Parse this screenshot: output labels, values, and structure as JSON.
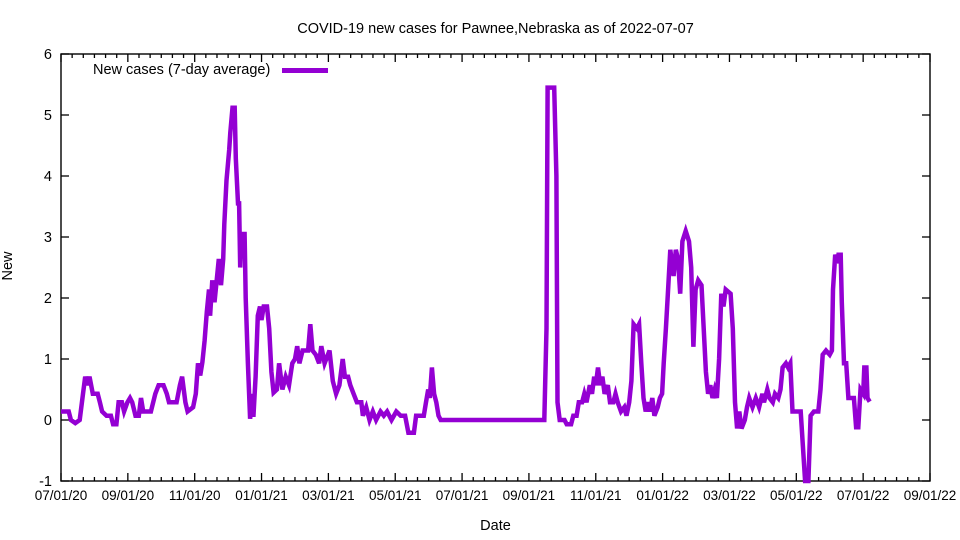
{
  "title": "COVID-19 new cases for Pawnee,Nebraska as of 2022-07-07",
  "legend": {
    "label": "New cases (7-day average)",
    "position": "top-left-inside"
  },
  "colors": {
    "series": "#9400d3",
    "axis": "#000000",
    "background": "#ffffff"
  },
  "axes": {
    "x": {
      "label": "Date",
      "tick_labels": [
        "07/01/20",
        "09/01/20",
        "11/01/20",
        "01/01/21",
        "03/01/21",
        "05/01/21",
        "07/01/21",
        "09/01/21",
        "11/01/21",
        "01/01/22",
        "03/01/22",
        "05/01/22",
        "07/01/22",
        "09/01/22"
      ],
      "minor_ticks_per_interval": 6
    },
    "y": {
      "label": "New",
      "tick_labels": [
        "-1",
        "0",
        "1",
        "2",
        "3",
        "4",
        "5",
        "6"
      ],
      "range": [
        -1,
        6
      ]
    }
  },
  "chart_data": {
    "type": "line",
    "title": "COVID-19 new cases for Pawnee,Nebraska as of 2022-07-07",
    "xlabel": "Date",
    "ylabel": "New",
    "x_range": [
      "07/01/20",
      "09/01/22"
    ],
    "ylim": [
      -1,
      6
    ],
    "grid": false,
    "legend_position": "top-left-inside",
    "series": [
      {
        "name": "New cases (7-day average)",
        "color": "#9400d3",
        "points": [
          [
            "07/01/20",
            0.14
          ],
          [
            "07/08/20",
            0.14
          ],
          [
            "07/10/20",
            0.0
          ],
          [
            "07/14/20",
            -0.05
          ],
          [
            "07/18/20",
            0.0
          ],
          [
            "07/21/20",
            0.43
          ],
          [
            "07/23/20",
            0.71
          ],
          [
            "07/25/20",
            0.57
          ],
          [
            "07/27/20",
            0.71
          ],
          [
            "07/30/20",
            0.43
          ],
          [
            "08/04/20",
            0.43
          ],
          [
            "08/06/20",
            0.29
          ],
          [
            "08/08/20",
            0.14
          ],
          [
            "08/12/20",
            0.07
          ],
          [
            "08/16/20",
            0.07
          ],
          [
            "08/18/20",
            -0.07
          ],
          [
            "08/21/20",
            -0.07
          ],
          [
            "08/23/20",
            0.29
          ],
          [
            "08/26/20",
            0.29
          ],
          [
            "08/28/20",
            0.14
          ],
          [
            "08/31/20",
            0.29
          ],
          [
            "09/03/20",
            0.36
          ],
          [
            "09/05/20",
            0.29
          ],
          [
            "09/08/20",
            0.07
          ],
          [
            "09/11/20",
            0.07
          ],
          [
            "09/13/20",
            0.36
          ],
          [
            "09/15/20",
            0.14
          ],
          [
            "09/22/20",
            0.14
          ],
          [
            "09/26/20",
            0.43
          ],
          [
            "09/29/20",
            0.57
          ],
          [
            "10/03/20",
            0.57
          ],
          [
            "10/06/20",
            0.43
          ],
          [
            "10/08/20",
            0.29
          ],
          [
            "10/15/20",
            0.29
          ],
          [
            "10/18/20",
            0.57
          ],
          [
            "10/20/20",
            0.71
          ],
          [
            "10/23/20",
            0.29
          ],
          [
            "10/25/20",
            0.14
          ],
          [
            "10/30/20",
            0.21
          ],
          [
            "11/02/20",
            0.43
          ],
          [
            "11/04/20",
            0.93
          ],
          [
            "11/06/20",
            0.73
          ],
          [
            "11/08/20",
            0.95
          ],
          [
            "11/10/20",
            1.3
          ],
          [
            "11/12/20",
            1.77
          ],
          [
            "11/14/20",
            2.14
          ],
          [
            "11/15/20",
            1.71
          ],
          [
            "11/17/20",
            2.29
          ],
          [
            "11/19/20",
            1.93
          ],
          [
            "11/21/20",
            2.29
          ],
          [
            "11/23/20",
            2.64
          ],
          [
            "11/25/20",
            2.21
          ],
          [
            "11/27/20",
            2.64
          ],
          [
            "11/28/20",
            3.21
          ],
          [
            "11/30/20",
            3.93
          ],
          [
            "12/02/20",
            4.43
          ],
          [
            "12/03/20",
            4.71
          ],
          [
            "12/05/20",
            5.12
          ],
          [
            "12/07/20",
            5.12
          ],
          [
            "12/08/20",
            4.29
          ],
          [
            "12/10/20",
            3.55
          ],
          [
            "12/11/20",
            3.55
          ],
          [
            "12/12/20",
            2.5
          ],
          [
            "12/13/20",
            3.05
          ],
          [
            "12/16/20",
            3.05
          ],
          [
            "12/17/20",
            2.0
          ],
          [
            "12/19/20",
            0.93
          ],
          [
            "12/21/20",
            0.02
          ],
          [
            "12/23/20",
            0.43
          ],
          [
            "12/24/20",
            0.05
          ],
          [
            "12/26/20",
            0.71
          ],
          [
            "12/28/20",
            1.71
          ],
          [
            "12/30/20",
            1.86
          ],
          [
            "01/01/21",
            1.64
          ],
          [
            "01/03/21",
            1.86
          ],
          [
            "01/06/21",
            1.86
          ],
          [
            "01/08/21",
            1.5
          ],
          [
            "01/10/21",
            0.79
          ],
          [
            "01/12/21",
            0.45
          ],
          [
            "01/15/21",
            0.5
          ],
          [
            "01/17/21",
            0.93
          ],
          [
            "01/20/21",
            0.5
          ],
          [
            "01/23/21",
            0.71
          ],
          [
            "01/26/21",
            0.57
          ],
          [
            "01/29/21",
            0.93
          ],
          [
            "02/01/21",
            1.0
          ],
          [
            "02/03/21",
            1.21
          ],
          [
            "02/05/21",
            0.93
          ],
          [
            "02/08/21",
            1.14
          ],
          [
            "02/13/21",
            1.14
          ],
          [
            "02/15/21",
            1.57
          ],
          [
            "02/17/21",
            1.14
          ],
          [
            "02/20/21",
            1.07
          ],
          [
            "02/23/21",
            0.93
          ],
          [
            "02/25/21",
            1.21
          ],
          [
            "02/28/21",
            0.93
          ],
          [
            "03/02/21",
            1.14
          ],
          [
            "03/05/21",
            0.64
          ],
          [
            "03/08/21",
            0.43
          ],
          [
            "03/11/21",
            0.57
          ],
          [
            "03/14/21",
            1.0
          ],
          [
            "03/16/21",
            0.71
          ],
          [
            "03/19/21",
            0.71
          ],
          [
            "03/21/21",
            0.57
          ],
          [
            "03/24/21",
            0.43
          ],
          [
            "03/27/21",
            0.29
          ],
          [
            "03/31/21",
            0.29
          ],
          [
            "04/02/21",
            0.07
          ],
          [
            "04/05/21",
            0.21
          ],
          [
            "04/08/21",
            0.0
          ],
          [
            "04/11/21",
            0.14
          ],
          [
            "04/14/21",
            0.0
          ],
          [
            "04/18/21",
            0.14
          ],
          [
            "04/21/21",
            0.07
          ],
          [
            "04/24/21",
            0.14
          ],
          [
            "04/28/21",
            0.0
          ],
          [
            "05/02/21",
            0.14
          ],
          [
            "05/06/21",
            0.07
          ],
          [
            "05/10/21",
            0.07
          ],
          [
            "05/13/21",
            -0.21
          ],
          [
            "05/18/21",
            -0.21
          ],
          [
            "05/20/21",
            0.07
          ],
          [
            "05/27/21",
            0.07
          ],
          [
            "05/29/21",
            0.29
          ],
          [
            "05/31/21",
            0.5
          ],
          [
            "06/02/21",
            0.36
          ],
          [
            "06/04/21",
            0.86
          ],
          [
            "06/06/21",
            0.43
          ],
          [
            "06/08/21",
            0.29
          ],
          [
            "06/10/21",
            0.07
          ],
          [
            "06/12/21",
            0.0
          ],
          [
            "09/15/21",
            0.0
          ],
          [
            "09/17/21",
            1.5
          ],
          [
            "09/18/21",
            5.45
          ],
          [
            "09/24/21",
            5.45
          ],
          [
            "09/26/21",
            4.0
          ],
          [
            "09/27/21",
            0.29
          ],
          [
            "09/29/21",
            0.0
          ],
          [
            "10/03/21",
            0.0
          ],
          [
            "10/05/21",
            -0.07
          ],
          [
            "10/09/21",
            -0.07
          ],
          [
            "10/11/21",
            0.07
          ],
          [
            "10/14/21",
            0.07
          ],
          [
            "10/16/21",
            0.29
          ],
          [
            "10/19/21",
            0.29
          ],
          [
            "10/21/21",
            0.43
          ],
          [
            "10/23/21",
            0.29
          ],
          [
            "10/26/21",
            0.57
          ],
          [
            "10/28/21",
            0.43
          ],
          [
            "10/30/21",
            0.71
          ],
          [
            "11/01/21",
            0.57
          ],
          [
            "11/03/21",
            0.86
          ],
          [
            "11/05/21",
            0.57
          ],
          [
            "11/07/21",
            0.71
          ],
          [
            "11/09/21",
            0.43
          ],
          [
            "11/12/21",
            0.57
          ],
          [
            "11/14/21",
            0.29
          ],
          [
            "11/17/21",
            0.29
          ],
          [
            "11/19/21",
            0.43
          ],
          [
            "11/21/21",
            0.29
          ],
          [
            "11/24/21",
            0.14
          ],
          [
            "11/27/21",
            0.21
          ],
          [
            "11/29/21",
            0.07
          ],
          [
            "12/01/21",
            0.29
          ],
          [
            "12/03/21",
            0.64
          ],
          [
            "12/05/21",
            1.57
          ],
          [
            "12/08/21",
            1.5
          ],
          [
            "12/10/21",
            1.57
          ],
          [
            "12/12/21",
            0.93
          ],
          [
            "12/14/21",
            0.36
          ],
          [
            "12/16/21",
            0.14
          ],
          [
            "12/18/21",
            0.29
          ],
          [
            "12/20/21",
            0.14
          ],
          [
            "12/22/21",
            0.36
          ],
          [
            "12/24/21",
            0.07
          ],
          [
            "12/27/21",
            0.21
          ],
          [
            "12/29/21",
            0.36
          ],
          [
            "12/31/21",
            0.43
          ],
          [
            "01/02/22",
            0.93
          ],
          [
            "01/04/22",
            1.5
          ],
          [
            "01/06/22",
            2.14
          ],
          [
            "01/08/22",
            2.79
          ],
          [
            "01/11/22",
            2.36
          ],
          [
            "01/13/22",
            2.79
          ],
          [
            "01/15/22",
            2.64
          ],
          [
            "01/17/22",
            2.07
          ],
          [
            "01/19/22",
            2.93
          ],
          [
            "01/22/22",
            3.1
          ],
          [
            "01/25/22",
            2.93
          ],
          [
            "01/27/22",
            2.5
          ],
          [
            "01/29/22",
            1.2
          ],
          [
            "01/31/22",
            2.14
          ],
          [
            "02/03/22",
            2.29
          ],
          [
            "02/06/22",
            2.21
          ],
          [
            "02/08/22",
            1.5
          ],
          [
            "02/10/22",
            0.79
          ],
          [
            "02/12/22",
            0.43
          ],
          [
            "02/14/22",
            0.57
          ],
          [
            "02/16/22",
            0.36
          ],
          [
            "02/18/22",
            0.5
          ],
          [
            "02/20/22",
            0.36
          ],
          [
            "02/22/22",
            1.0
          ],
          [
            "02/24/22",
            2.07
          ],
          [
            "02/26/22",
            1.86
          ],
          [
            "02/28/22",
            2.14
          ],
          [
            "03/02/22",
            2.07
          ],
          [
            "03/04/22",
            1.5
          ],
          [
            "03/06/22",
            0.29
          ],
          [
            "03/08/22",
            -0.14
          ],
          [
            "03/10/22",
            0.14
          ],
          [
            "03/12/22",
            -0.14
          ],
          [
            "03/15/22",
            0.0
          ],
          [
            "03/17/22",
            0.21
          ],
          [
            "03/19/22",
            0.36
          ],
          [
            "03/22/22",
            0.21
          ],
          [
            "03/25/22",
            0.36
          ],
          [
            "03/28/22",
            0.21
          ],
          [
            "03/31/22",
            0.43
          ],
          [
            "04/02/22",
            0.29
          ],
          [
            "04/05/22",
            0.5
          ],
          [
            "04/07/22",
            0.36
          ],
          [
            "04/10/22",
            0.29
          ],
          [
            "04/12/22",
            0.43
          ],
          [
            "04/15/22",
            0.36
          ],
          [
            "04/17/22",
            0.5
          ],
          [
            "04/19/22",
            0.86
          ],
          [
            "04/22/22",
            0.93
          ],
          [
            "04/24/22",
            0.86
          ],
          [
            "04/26/22",
            0.93
          ],
          [
            "04/28/22",
            0.14
          ],
          [
            "05/05/22",
            0.14
          ],
          [
            "05/07/22",
            -0.43
          ],
          [
            "05/09/22",
            -1.0
          ],
          [
            "05/12/22",
            -1.0
          ],
          [
            "05/14/22",
            0.07
          ],
          [
            "05/17/22",
            0.14
          ],
          [
            "05/21/22",
            0.14
          ],
          [
            "05/23/22",
            0.5
          ],
          [
            "05/25/22",
            1.07
          ],
          [
            "05/28/22",
            1.14
          ],
          [
            "06/01/22",
            1.07
          ],
          [
            "06/03/22",
            1.14
          ],
          [
            "06/04/22",
            2.14
          ],
          [
            "06/06/22",
            2.71
          ],
          [
            "06/08/22",
            2.57
          ],
          [
            "06/09/22",
            2.71
          ],
          [
            "06/11/22",
            2.71
          ],
          [
            "06/12/22",
            1.93
          ],
          [
            "06/14/22",
            0.93
          ],
          [
            "06/16/22",
            0.93
          ],
          [
            "06/18/22",
            0.36
          ],
          [
            "06/23/22",
            0.36
          ],
          [
            "06/25/22",
            -0.12
          ],
          [
            "06/27/22",
            -0.12
          ],
          [
            "06/29/22",
            0.5
          ],
          [
            "07/01/22",
            0.43
          ],
          [
            "07/02/22",
            0.86
          ],
          [
            "07/04/22",
            0.86
          ],
          [
            "07/05/22",
            0.36
          ],
          [
            "07/07/22",
            0.3
          ]
        ]
      }
    ]
  }
}
